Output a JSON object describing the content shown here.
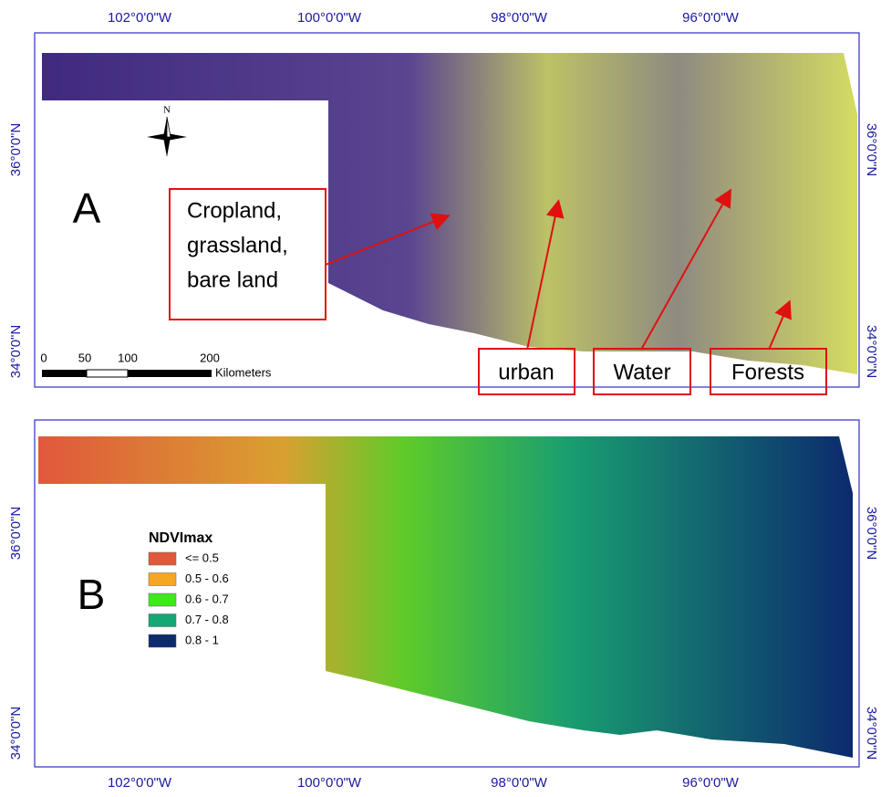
{
  "panels": [
    {
      "letter": "A",
      "lon_labels": [
        "102°0'0\"W",
        "100°0'0\"W",
        "98°0'0\"W",
        "96°0'0\"W"
      ],
      "lat_labels": [
        "36°0'0\"N",
        "34°0'0\"N"
      ],
      "north": "N",
      "annotations": [
        [
          "Cropland,",
          "grassland,",
          "bare land"
        ],
        [
          "urban"
        ],
        [
          "Water"
        ],
        [
          "Forests"
        ]
      ],
      "scale": {
        "ticks": [
          "0",
          "50",
          "100",
          "200"
        ],
        "unit": "Kilometers"
      }
    },
    {
      "letter": "B",
      "lon_labels": [
        "102°0'0\"W",
        "100°0'0\"W",
        "98°0'0\"W",
        "96°0'0\"W"
      ],
      "lat_labels": [
        "36°0'0\"N",
        "34°0'0\"N"
      ],
      "legend": {
        "title": "NDVImax",
        "items": [
          {
            "label": "<= 0.5",
            "color": "#e0583c"
          },
          {
            "label": "0.5 - 0.6",
            "color": "#f5a623"
          },
          {
            "label": "0.6 - 0.7",
            "color": "#3ee81a"
          },
          {
            "label": "0.7 - 0.8",
            "color": "#13a874"
          },
          {
            "label": "0.8 - 1",
            "color": "#0c2a6e"
          }
        ]
      }
    }
  ]
}
